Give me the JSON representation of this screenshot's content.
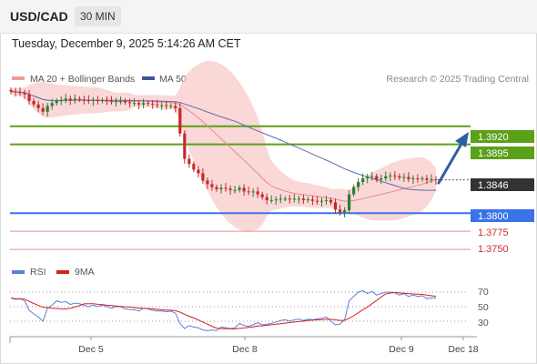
{
  "header": {
    "symbol": "USD/CAD",
    "interval": "30 MIN"
  },
  "datetime": "Tuesday, December 9, 2025 5:14:26 AM CET",
  "legend": {
    "ma20": "MA 20 + Bollinger Bands",
    "ma50": "MA 50",
    "rsi": "RSI",
    "ma9": "9MA"
  },
  "copyright": "Research © 2025 Trading Central",
  "colors": {
    "up_candle": "#2e7d32",
    "down_candle": "#c62828",
    "bollinger": "#f8c8c8",
    "ma20": "#e88a8a",
    "ma50": "#5c6bb0",
    "resistance": "#5aa019",
    "support_main": "#3a73e8",
    "support_minor": "#f08a8a",
    "arrow": "#2c5fa0",
    "rsi_line": "#5b7fd6",
    "rsi_ma": "#d42020"
  },
  "levels": [
    {
      "value": "1.3920",
      "kind": "resistance"
    },
    {
      "value": "1.3895",
      "kind": "resistance"
    },
    {
      "value": "1.3846",
      "kind": "current"
    },
    {
      "value": "1.3800",
      "kind": "support_main"
    },
    {
      "value": "1.3775",
      "kind": "support_minor"
    },
    {
      "value": "1.3750",
      "kind": "support_minor"
    }
  ],
  "x_ticks": [
    "Dec 5",
    "Dec 8",
    "Dec 9",
    "Dec 18"
  ],
  "rsi_ticks": [
    "70",
    "50",
    "30"
  ],
  "chart_data": {
    "type": "candlestick",
    "price_series": [
      1.3968,
      1.3967,
      1.3966,
      1.3964,
      1.3955,
      1.395,
      1.3945,
      1.394,
      1.3948,
      1.3952,
      1.3955,
      1.3956,
      1.3958,
      1.3956,
      1.3958,
      1.3957,
      1.3956,
      1.3955,
      1.3956,
      1.3955,
      1.3956,
      1.3955,
      1.3954,
      1.3955,
      1.3955,
      1.3953,
      1.3952,
      1.3952,
      1.395,
      1.3952,
      1.3951,
      1.395,
      1.3949,
      1.3949,
      1.3948,
      1.3948,
      1.3945,
      1.391,
      1.3875,
      1.3868,
      1.386,
      1.3855,
      1.3845,
      1.384,
      1.3836,
      1.3833,
      1.3835,
      1.3834,
      1.3832,
      1.3832,
      1.3835,
      1.383,
      1.3829,
      1.383,
      1.3826,
      1.3822,
      1.3818,
      1.3818,
      1.3819,
      1.382,
      1.382,
      1.3819,
      1.382,
      1.382,
      1.3818,
      1.3819,
      1.3817,
      1.3816,
      1.3817,
      1.3818,
      1.3815,
      1.3805,
      1.3801,
      1.3804,
      1.3826,
      1.3836,
      1.3843,
      1.3848,
      1.385,
      1.3851,
      1.3846,
      1.3848,
      1.3851,
      1.3852,
      1.3851,
      1.3849,
      1.385,
      1.3847,
      1.3848,
      1.3847,
      1.3848,
      1.3846,
      1.3847,
      1.3846
    ],
    "rsi_series": [
      62,
      60,
      61,
      58,
      45,
      40,
      36,
      30,
      48,
      52,
      58,
      56,
      57,
      53,
      55,
      54,
      52,
      50,
      52,
      50,
      52,
      50,
      48,
      50,
      50,
      47,
      46,
      46,
      44,
      48,
      47,
      45,
      44,
      44,
      43,
      44,
      41,
      27,
      20,
      24,
      22,
      21,
      18,
      17,
      18,
      17,
      22,
      21,
      20,
      21,
      27,
      24,
      23,
      25,
      28,
      25,
      26,
      27,
      29,
      31,
      32,
      30,
      32,
      33,
      31,
      33,
      32,
      33,
      34,
      36,
      30,
      25,
      26,
      32,
      58,
      64,
      70,
      72,
      68,
      71,
      66,
      68,
      70,
      70,
      69,
      66,
      68,
      64,
      66,
      64,
      65,
      61,
      62,
      62
    ],
    "y_axis": {
      "min": 1.373,
      "max": 1.4
    },
    "rsi_axis": {
      "min": 15,
      "max": 80
    },
    "resistance_levels": [
      1.392,
      1.3895
    ],
    "support_levels": [
      1.38,
      1.3775,
      1.375
    ],
    "current_price": 1.3846,
    "grid": false
  }
}
